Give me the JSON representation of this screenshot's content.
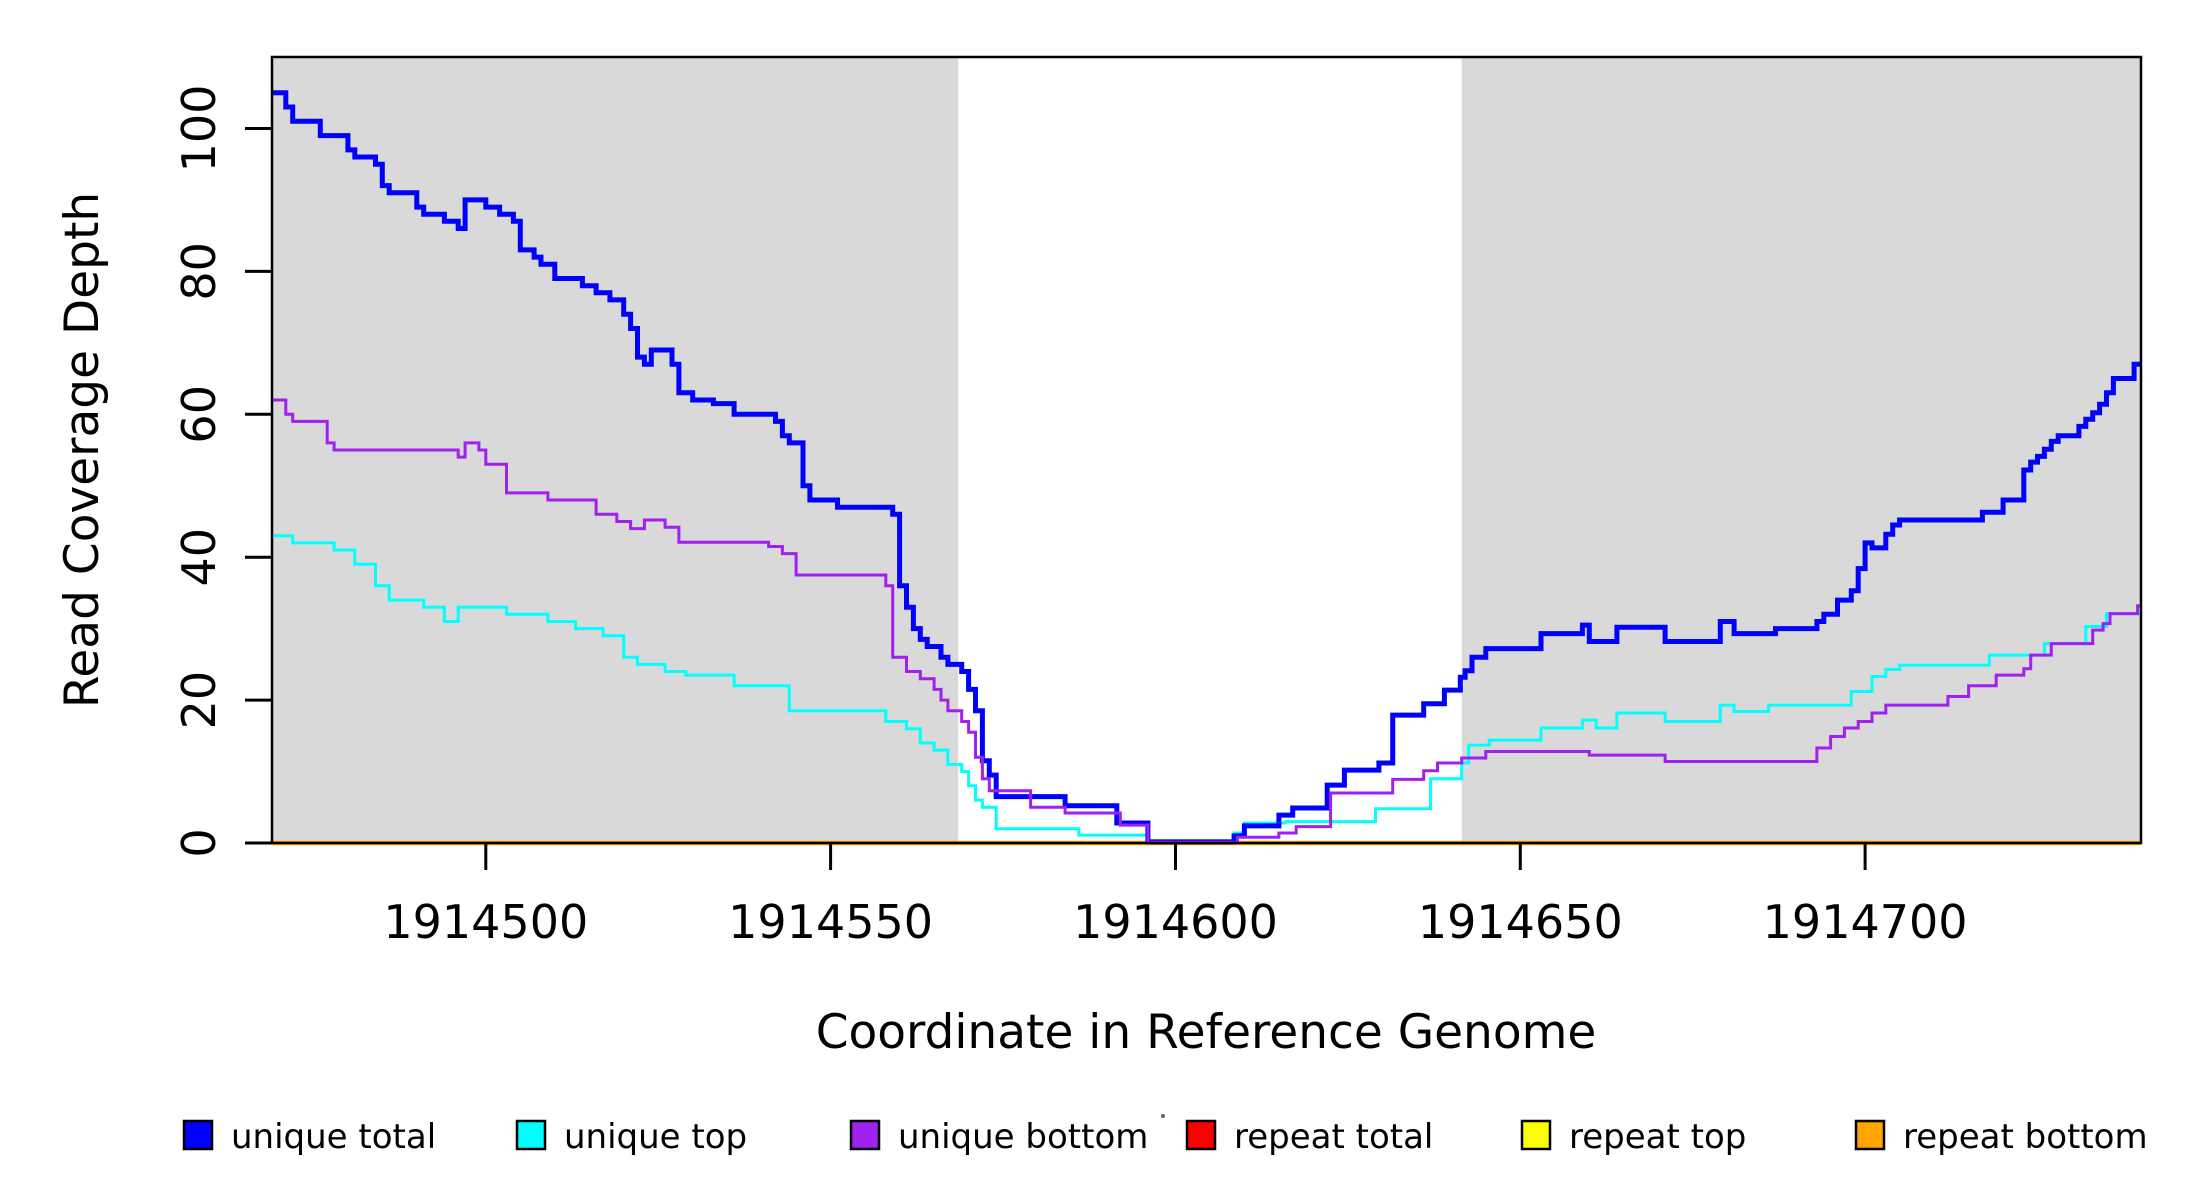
{
  "figure": {
    "xlabel": "Coordinate in Reference Genome",
    "ylabel": "Read Coverage Depth"
  },
  "chart_data": {
    "type": "line",
    "step": true,
    "title": "",
    "xlabel": "Coordinate in Reference Genome",
    "ylabel": "Read Coverage Depth",
    "xlim": [
      1914469,
      1914740
    ],
    "ylim": [
      0,
      110
    ],
    "x_ticks": [
      1914500,
      1914550,
      1914600,
      1914650,
      1914700
    ],
    "y_ticks": [
      0,
      20,
      40,
      60,
      80,
      100
    ],
    "grid": false,
    "legend_position": "bottom",
    "plot_background": "#ffffff",
    "shaded_band_color": "#d9d9d9",
    "background_bands": [
      {
        "x0": 1914469,
        "x1": 1914568.5,
        "color": "#d9d9d9"
      },
      {
        "x0": 1914641.5,
        "x1": 1914740,
        "color": "#d9d9d9"
      }
    ],
    "series": [
      {
        "name": "repeat total",
        "color": "#ff0000",
        "line_width": 3,
        "points": [
          [
            1914469,
            0
          ]
        ]
      },
      {
        "name": "repeat top",
        "color": "#ffff00",
        "line_width": 3,
        "points": [
          [
            1914469,
            0
          ]
        ]
      },
      {
        "name": "repeat bottom",
        "color": "#ffa500",
        "line_width": 4.5,
        "points": [
          [
            1914469,
            0
          ]
        ]
      },
      {
        "name": "unique top",
        "color": "#00ffff",
        "line_width": 3,
        "points": [
          [
            1914469,
            43
          ],
          [
            1914472,
            42
          ],
          [
            1914478,
            41
          ],
          [
            1914481,
            39
          ],
          [
            1914484,
            36
          ],
          [
            1914486,
            34
          ],
          [
            1914491,
            33
          ],
          [
            1914494,
            31
          ],
          [
            1914496,
            33
          ],
          [
            1914503,
            32
          ],
          [
            1914509,
            31
          ],
          [
            1914513,
            30
          ],
          [
            1914517,
            29
          ],
          [
            1914520,
            26
          ],
          [
            1914522,
            25
          ],
          [
            1914526,
            24
          ],
          [
            1914529,
            23.5
          ],
          [
            1914536,
            22
          ],
          [
            1914544,
            18.5
          ],
          [
            1914558,
            17
          ],
          [
            1914561,
            16
          ],
          [
            1914563,
            14
          ],
          [
            1914565,
            13
          ],
          [
            1914567,
            11
          ],
          [
            1914569,
            10
          ],
          [
            1914570,
            8
          ],
          [
            1914571,
            6
          ],
          [
            1914572,
            5
          ],
          [
            1914574,
            2
          ],
          [
            1914586,
            1.1
          ],
          [
            1914596,
            0.3
          ],
          [
            1914608.5,
            1.4
          ],
          [
            1914610,
            2.8
          ],
          [
            1914616,
            3.0
          ],
          [
            1914629,
            4.8
          ],
          [
            1914637,
            9
          ],
          [
            1914641.5,
            11.2
          ],
          [
            1914642.5,
            13.7
          ],
          [
            1914645.5,
            14.4
          ],
          [
            1914653,
            16.1
          ],
          [
            1914659,
            17.2
          ],
          [
            1914661,
            16.1
          ],
          [
            1914664,
            18.2
          ],
          [
            1914671,
            17
          ],
          [
            1914679,
            19.3
          ],
          [
            1914681,
            18.4
          ],
          [
            1914686,
            19.3
          ],
          [
            1914698,
            21.2
          ],
          [
            1914701,
            23.3
          ],
          [
            1914703,
            24.3
          ],
          [
            1914705,
            24.9
          ],
          [
            1914718,
            26.3
          ],
          [
            1914726,
            27.9
          ],
          [
            1914732,
            30.3
          ],
          [
            1914735,
            32.1
          ]
        ]
      },
      {
        "name": "unique total",
        "color": "#0000ff",
        "line_width": 5,
        "points": [
          [
            1914469,
            105
          ],
          [
            1914471,
            103
          ],
          [
            1914472,
            101
          ],
          [
            1914476,
            99
          ],
          [
            1914480,
            97
          ],
          [
            1914481,
            96
          ],
          [
            1914484,
            95
          ],
          [
            1914485,
            92
          ],
          [
            1914486,
            91
          ],
          [
            1914490,
            89
          ],
          [
            1914491,
            88
          ],
          [
            1914494,
            87
          ],
          [
            1914496,
            86
          ],
          [
            1914497,
            90
          ],
          [
            1914500,
            89
          ],
          [
            1914502,
            88
          ],
          [
            1914504,
            87
          ],
          [
            1914505,
            83
          ],
          [
            1914507,
            82
          ],
          [
            1914508,
            81
          ],
          [
            1914510,
            79
          ],
          [
            1914514,
            78
          ],
          [
            1914516,
            77
          ],
          [
            1914518,
            76
          ],
          [
            1914520,
            74
          ],
          [
            1914521,
            72
          ],
          [
            1914522,
            68
          ],
          [
            1914523,
            67
          ],
          [
            1914524,
            69
          ],
          [
            1914527,
            67
          ],
          [
            1914528,
            63
          ],
          [
            1914530,
            62
          ],
          [
            1914533,
            61.5
          ],
          [
            1914536,
            60
          ],
          [
            1914542,
            59
          ],
          [
            1914543,
            57
          ],
          [
            1914544,
            56
          ],
          [
            1914546,
            50
          ],
          [
            1914547,
            48
          ],
          [
            1914551,
            47
          ],
          [
            1914559,
            46
          ],
          [
            1914560,
            36
          ],
          [
            1914561,
            33
          ],
          [
            1914562,
            30
          ],
          [
            1914563,
            28.5
          ],
          [
            1914564,
            27.5
          ],
          [
            1914566,
            26
          ],
          [
            1914567,
            25
          ],
          [
            1914569,
            24
          ],
          [
            1914570,
            21.5
          ],
          [
            1914571,
            18.5
          ],
          [
            1914572,
            11.5
          ],
          [
            1914573,
            9.5
          ],
          [
            1914574,
            6.5
          ],
          [
            1914584,
            5.2
          ],
          [
            1914591.5,
            2.8
          ],
          [
            1914596,
            0.15
          ],
          [
            1914608.5,
            1.0
          ],
          [
            1914610,
            2.4
          ],
          [
            1914615,
            3.9
          ],
          [
            1914617,
            4.9
          ],
          [
            1914622,
            8.1
          ],
          [
            1914624.5,
            10.2
          ],
          [
            1914629.5,
            11.2
          ],
          [
            1914631.5,
            17.9
          ],
          [
            1914636,
            19.5
          ],
          [
            1914639,
            21.4
          ],
          [
            1914641.3,
            23.2
          ],
          [
            1914642,
            24.1
          ],
          [
            1914643,
            26
          ],
          [
            1914645,
            27.2
          ],
          [
            1914653,
            29.3
          ],
          [
            1914659,
            30.5
          ],
          [
            1914660,
            28.2
          ],
          [
            1914664,
            30.2
          ],
          [
            1914671,
            28.2
          ],
          [
            1914679,
            31
          ],
          [
            1914681,
            29.3
          ],
          [
            1914687,
            30
          ],
          [
            1914693,
            31
          ],
          [
            1914694,
            32
          ],
          [
            1914696,
            34
          ],
          [
            1914698,
            35.3
          ],
          [
            1914699,
            38.4
          ],
          [
            1914700,
            42
          ],
          [
            1914701,
            41.3
          ],
          [
            1914703,
            43.2
          ],
          [
            1914704,
            44.5
          ],
          [
            1914705,
            45.2
          ],
          [
            1914717,
            46.3
          ],
          [
            1914720,
            48
          ],
          [
            1914723,
            52.2
          ],
          [
            1914724,
            53.3
          ],
          [
            1914725,
            54.1
          ],
          [
            1914726,
            55.1
          ],
          [
            1914727,
            56.2
          ],
          [
            1914728,
            57
          ],
          [
            1914731,
            58.3
          ],
          [
            1914732,
            59.3
          ],
          [
            1914733,
            60.2
          ],
          [
            1914734,
            61.4
          ],
          [
            1914735,
            63
          ],
          [
            1914736,
            65
          ],
          [
            1914739,
            67
          ]
        ]
      },
      {
        "name": "unique bottom",
        "color": "#a020f0",
        "line_width": 3,
        "points": [
          [
            1914469,
            62
          ],
          [
            1914471,
            60
          ],
          [
            1914472,
            59
          ],
          [
            1914477,
            56
          ],
          [
            1914478,
            55
          ],
          [
            1914496,
            54
          ],
          [
            1914497,
            56
          ],
          [
            1914499,
            55
          ],
          [
            1914500,
            53
          ],
          [
            1914503,
            49
          ],
          [
            1914509,
            48
          ],
          [
            1914516,
            46
          ],
          [
            1914519,
            45
          ],
          [
            1914521,
            44
          ],
          [
            1914523,
            45.2
          ],
          [
            1914526,
            44.2
          ],
          [
            1914528,
            42.1
          ],
          [
            1914541,
            41.5
          ],
          [
            1914543,
            40.5
          ],
          [
            1914545,
            37.5
          ],
          [
            1914558,
            36
          ],
          [
            1914559,
            26
          ],
          [
            1914561,
            24
          ],
          [
            1914563,
            23
          ],
          [
            1914565,
            21.5
          ],
          [
            1914566,
            20
          ],
          [
            1914567,
            18.5
          ],
          [
            1914569,
            17
          ],
          [
            1914570,
            15.5
          ],
          [
            1914571,
            12
          ],
          [
            1914572,
            9
          ],
          [
            1914573,
            7.3
          ],
          [
            1914579,
            5
          ],
          [
            1914584,
            4.2
          ],
          [
            1914592,
            2.5
          ],
          [
            1914596,
            0.1
          ],
          [
            1914609,
            0.8
          ],
          [
            1914615,
            1.4
          ],
          [
            1914617.5,
            2.3
          ],
          [
            1914622.5,
            7
          ],
          [
            1914631.5,
            8.9
          ],
          [
            1914636,
            10.1
          ],
          [
            1914638,
            11.2
          ],
          [
            1914641.5,
            11.9
          ],
          [
            1914645,
            12.8
          ],
          [
            1914660,
            12.3
          ],
          [
            1914671,
            11.4
          ],
          [
            1914693,
            13.3
          ],
          [
            1914695,
            14.9
          ],
          [
            1914697,
            16.1
          ],
          [
            1914699,
            17
          ],
          [
            1914701,
            18.2
          ],
          [
            1914703,
            19.3
          ],
          [
            1914712,
            20.5
          ],
          [
            1914715,
            22
          ],
          [
            1914719,
            23.5
          ],
          [
            1914723,
            24.4
          ],
          [
            1914724,
            26.3
          ],
          [
            1914727,
            27.9
          ],
          [
            1914733,
            29.8
          ],
          [
            1914734.5,
            30.7
          ],
          [
            1914735.5,
            32.1
          ],
          [
            1914739.5,
            33.2
          ]
        ]
      }
    ],
    "legend": [
      {
        "label": "unique total",
        "color": "#0000ff"
      },
      {
        "label": "unique top",
        "color": "#00ffff"
      },
      {
        "label": "unique bottom",
        "color": "#a020f0"
      },
      {
        "label": "repeat total",
        "color": "#ff0000"
      },
      {
        "label": "repeat top",
        "color": "#ffff00"
      },
      {
        "label": "repeat bottom",
        "color": "#ffa500"
      }
    ]
  }
}
